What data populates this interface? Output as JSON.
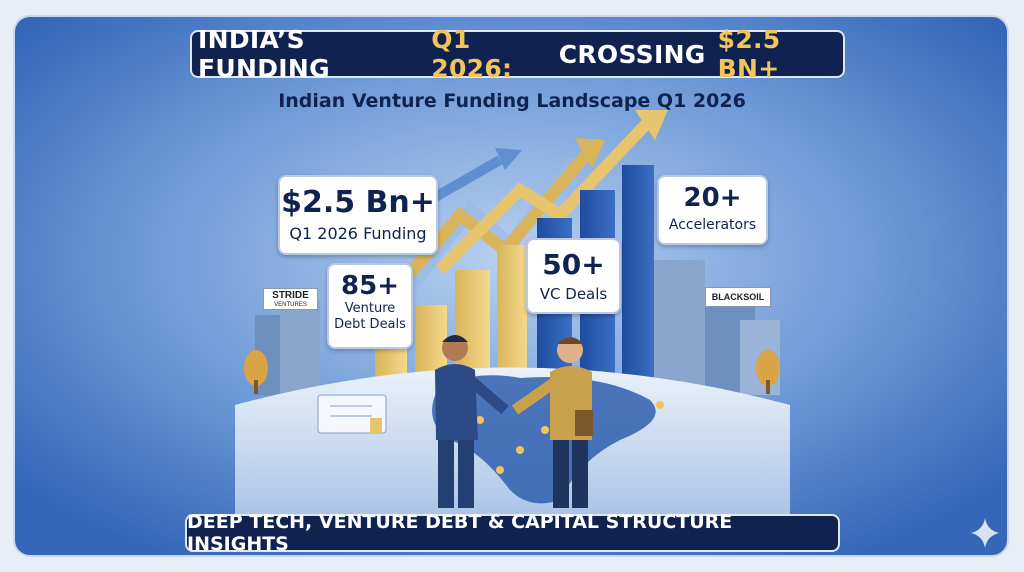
{
  "header": {
    "title_parts": [
      "INDIA’S FUNDING",
      "Q1 2026:",
      "CROSSING",
      "$2.5 BN+"
    ],
    "subtitle": "Indian Venture Funding Landscape Q1 2026"
  },
  "stats": [
    {
      "value": "$2.5 Bn+",
      "label": "Q1 2026 Funding"
    },
    {
      "value": "85+",
      "label": "Venture Debt Deals"
    },
    {
      "value": "50+",
      "label": "VC Deals"
    },
    {
      "value": "20+",
      "label": "Accelerators"
    }
  ],
  "logos": [
    {
      "name": "STRIDE",
      "sub": "VENTURES"
    },
    {
      "name": "BLACKSOIL"
    }
  ],
  "footer": {
    "text": "DEEP TECH, VENTURE DEBT & CAPITAL STRUCTURE INSIGHTS"
  }
}
